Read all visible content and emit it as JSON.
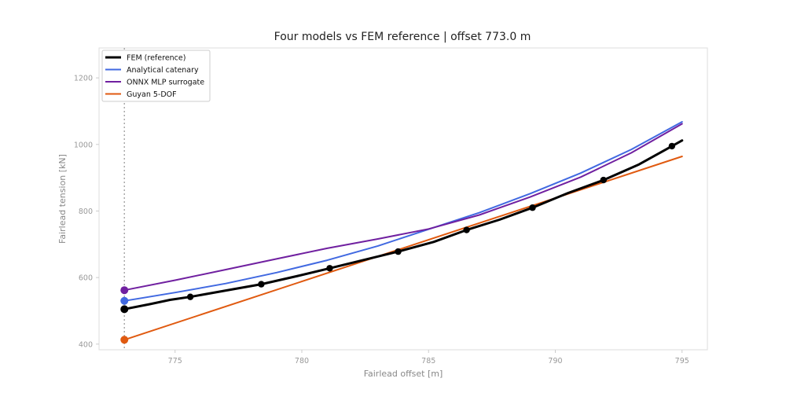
{
  "chart_data": {
    "type": "line",
    "title": "Four models vs FEM reference  |  offset 773.0 m",
    "xlabel": "Fairlead offset [m]",
    "ylabel": "Fairlead tension [kN]",
    "xlim": [
      772.0,
      796.0
    ],
    "ylim": [
      383,
      1290
    ],
    "xticks": [
      775,
      780,
      785,
      790,
      795
    ],
    "yticks": [
      400,
      600,
      800,
      1000,
      1200
    ],
    "grid": false,
    "legend_position": "top-left",
    "vline": {
      "x": 773.0,
      "color": "#aaaaaa",
      "style": "dotted"
    },
    "series": [
      {
        "name": "FEM (reference)",
        "color": "#000000",
        "x": [
          773.0,
          774.0,
          774.8,
          775.6,
          777.0,
          778.4,
          779.8,
          781.1,
          782.4,
          783.8,
          785.2,
          786.5,
          787.8,
          789.1,
          790.5,
          791.9,
          793.3,
          794.6,
          795.0
        ],
        "y": [
          505,
          520,
          533,
          542,
          561,
          580,
          604,
          628,
          652,
          678,
          707,
          743,
          774,
          810,
          854,
          893,
          940,
          995,
          1012
        ],
        "markers_x": [
          773.0,
          775.6,
          778.4,
          781.1,
          783.8,
          786.5,
          789.1,
          791.9,
          794.6
        ],
        "markers_y": [
          505,
          542,
          580,
          628,
          678,
          743,
          810,
          893,
          995
        ],
        "marker_start": true
      },
      {
        "name": "Analytical catenary",
        "color": "#4169e1",
        "x": [
          773.0,
          775.0,
          777.0,
          779.0,
          781.0,
          783.0,
          785.0,
          787.0,
          789.0,
          791.0,
          793.0,
          795.0
        ],
        "y": [
          530,
          555,
          582,
          615,
          652,
          695,
          745,
          795,
          852,
          914,
          985,
          1068
        ],
        "marker_start": true
      },
      {
        "name": "ONNX MLP surrogate",
        "color": "#7020a0",
        "x": [
          773.0,
          775.0,
          777.0,
          779.0,
          781.0,
          783.0,
          785.0,
          787.0,
          789.0,
          791.0,
          793.0,
          795.0
        ],
        "y": [
          562,
          592,
          624,
          656,
          688,
          716,
          746,
          788,
          842,
          902,
          975,
          1062
        ],
        "marker_start": true
      },
      {
        "name": "Guyan 5-DOF",
        "color": "#e05a10",
        "x": [
          773.0,
          795.0
        ],
        "y": [
          413,
          964
        ],
        "marker_start": true
      }
    ]
  }
}
